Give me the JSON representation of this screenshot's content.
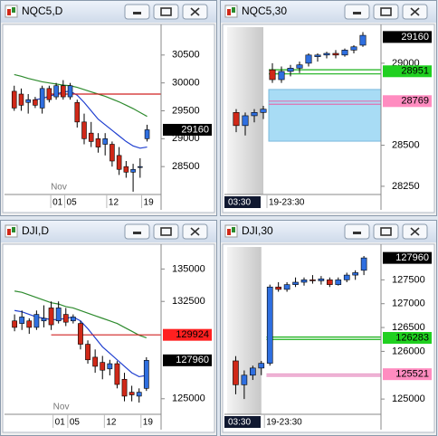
{
  "chart_data": [
    {
      "type": "candlestick",
      "title": "NQC5,D",
      "month": "Nov",
      "categories": [
        null,
        null,
        null,
        null,
        null,
        null,
        "01",
        null,
        "05",
        null,
        null,
        null,
        null,
        null,
        "12",
        null,
        null,
        null,
        null,
        "19"
      ],
      "open": [
        29850,
        29800,
        29650,
        29700,
        29550,
        29900,
        29750,
        29950,
        29750,
        29650,
        29300,
        29100,
        29000,
        28900,
        28900,
        28700,
        28500,
        28400,
        28500,
        29000
      ],
      "high": [
        29950,
        29900,
        29800,
        29750,
        29950,
        29950,
        30000,
        30050,
        30000,
        29700,
        29450,
        29300,
        29100,
        29100,
        28950,
        28850,
        28600,
        28550,
        28650,
        29250
      ],
      "low": [
        29500,
        29500,
        29450,
        29550,
        29450,
        29650,
        29700,
        29700,
        29700,
        29200,
        28900,
        28850,
        28750,
        28700,
        28500,
        28350,
        28300,
        28050,
        28300,
        28950
      ],
      "close": [
        29550,
        29600,
        29700,
        29600,
        29900,
        29700,
        29950,
        29750,
        29950,
        29300,
        29000,
        28950,
        28850,
        29000,
        28600,
        28450,
        28400,
        28450,
        28500,
        29160
      ],
      "up_color": "#2f6fe0",
      "down_color": "#d02818",
      "series": [
        {
          "color": "#2e8b2e",
          "values": [
            30150,
            30120,
            30080,
            30050,
            30020,
            30000,
            29980,
            29960,
            29950,
            29920,
            29880,
            29840,
            29800,
            29760,
            29710,
            29660,
            29600,
            29540,
            29470,
            29400
          ]
        },
        {
          "color": "#1f3fd0",
          "values": [
            null,
            null,
            null,
            29700,
            29720,
            29760,
            29800,
            29840,
            29850,
            29780,
            29650,
            29500,
            29350,
            29250,
            29150,
            29050,
            28950,
            28870,
            28830,
            28850
          ]
        }
      ],
      "levels": [
        {
          "value": 29800,
          "color": "#d02020"
        }
      ],
      "price_labels": [
        {
          "value": 29160,
          "color": "#000000"
        }
      ],
      "ylim": [
        28000,
        31000
      ],
      "yticks": [
        28500,
        29000,
        29500,
        30000,
        30500
      ]
    },
    {
      "type": "candlestick",
      "title": "NQC5,30",
      "categories": [
        "03:30",
        null,
        null,
        null,
        "19-23:30",
        null,
        null,
        null,
        null,
        null,
        null,
        null,
        null,
        null,
        null
      ],
      "open": [
        28700,
        28620,
        28680,
        28700,
        28960,
        28900,
        28950,
        28970,
        29000,
        29040,
        29050,
        29060,
        29050,
        29080,
        29110
      ],
      "high": [
        28720,
        28700,
        28720,
        28740,
        29000,
        28980,
        28990,
        29010,
        29060,
        29060,
        29070,
        29080,
        29090,
        29110,
        29190
      ],
      "low": [
        28580,
        28560,
        28640,
        28660,
        28880,
        28880,
        28920,
        28940,
        28980,
        29010,
        29030,
        29030,
        29040,
        29060,
        29100
      ],
      "close": [
        28620,
        28680,
        28700,
        28720,
        28900,
        28950,
        28970,
        28990,
        29050,
        29050,
        29060,
        29050,
        29080,
        29100,
        29170
      ],
      "up_color": "#2f6fe0",
      "down_color": "#d02818",
      "zone": {
        "low": 28525,
        "high": 28840,
        "color": "#a8dcf5"
      },
      "levels": [
        {
          "value": 28960,
          "color": "#18b018"
        },
        {
          "value": 28935,
          "color": "#18b018"
        },
        {
          "value": 28769,
          "color": "#e070b0"
        },
        {
          "value": 28750,
          "color": "#e070b0"
        }
      ],
      "price_labels": [
        {
          "value": 29160,
          "color": "#000000"
        },
        {
          "value": 28951,
          "color": "#20d020"
        },
        {
          "value": 28769,
          "color": "#ff8cc0"
        }
      ],
      "ylim": [
        28200,
        29220
      ],
      "yticks": [
        28250,
        28500,
        29000
      ]
    },
    {
      "type": "candlestick",
      "title": "DJI,D",
      "month": "Nov",
      "categories": [
        null,
        null,
        null,
        null,
        null,
        null,
        "01",
        null,
        "05",
        null,
        null,
        null,
        null,
        "12",
        null,
        null,
        null,
        null,
        "19"
      ],
      "open": [
        131000,
        130800,
        131000,
        130500,
        131000,
        132000,
        131000,
        131500,
        131000,
        130800,
        129200,
        128200,
        127800,
        127300,
        127700,
        126500,
        125500,
        125200,
        125800
      ],
      "high": [
        131500,
        131800,
        131200,
        131800,
        132200,
        132500,
        132500,
        132000,
        131500,
        131000,
        129500,
        128800,
        128300,
        128000,
        127900,
        127000,
        126000,
        125800,
        128200
      ],
      "low": [
        130200,
        130300,
        130000,
        130300,
        130500,
        130300,
        130800,
        130600,
        130800,
        128800,
        127700,
        127000,
        126500,
        126800,
        125800,
        124800,
        124800,
        124700,
        125600
      ],
      "close": [
        130500,
        131300,
        130500,
        131500,
        131200,
        130700,
        132000,
        130900,
        131300,
        129200,
        128000,
        127500,
        127200,
        127700,
        126100,
        125200,
        125300,
        125500,
        127960
      ],
      "up_color": "#2f6fe0",
      "down_color": "#d02818",
      "series": [
        {
          "color": "#2e8b2e",
          "values": [
            133300,
            133200,
            133000,
            132800,
            132600,
            132400,
            132300,
            132100,
            132000,
            131800,
            131600,
            131400,
            131200,
            131000,
            130800,
            130500,
            130200,
            129900,
            129700
          ]
        },
        {
          "color": "#1f3fd0",
          "values": [
            131800,
            131700,
            131500,
            131300,
            131200,
            131100,
            131100,
            131200,
            131300,
            131000,
            130400,
            129700,
            129000,
            128500,
            128000,
            127500,
            127000,
            126700,
            126800
          ]
        }
      ],
      "levels": [
        {
          "value": 129924,
          "color": "#d02020"
        }
      ],
      "price_labels": [
        {
          "value": 129924,
          "color": "#ff2020"
        },
        {
          "value": 127960,
          "color": "#000000"
        }
      ],
      "ylim": [
        123800,
        136700
      ],
      "yticks": [
        125000,
        132500,
        135000
      ]
    },
    {
      "type": "candlestick",
      "title": "DJI,30",
      "categories": [
        "03:30",
        null,
        null,
        null,
        "19-23:30",
        null,
        null,
        null,
        null,
        null,
        null,
        null,
        null,
        null,
        null,
        null
      ],
      "open": [
        125800,
        125300,
        125500,
        125650,
        125750,
        127350,
        127300,
        127400,
        127450,
        127500,
        127480,
        127500,
        127400,
        127500,
        127600,
        127700
      ],
      "high": [
        125900,
        125600,
        125700,
        125800,
        127400,
        127450,
        127450,
        127550,
        127550,
        127600,
        127580,
        127550,
        127550,
        127650,
        127700,
        128000
      ],
      "low": [
        125100,
        125000,
        125400,
        125500,
        125700,
        127250,
        127250,
        127350,
        127380,
        127420,
        127400,
        127350,
        127380,
        127450,
        127500,
        127600
      ],
      "close": [
        125300,
        125500,
        125650,
        125750,
        127350,
        127300,
        127400,
        127450,
        127500,
        127480,
        127520,
        127400,
        127500,
        127600,
        127650,
        127960
      ],
      "up_color": "#2f6fe0",
      "down_color": "#d02818",
      "levels": [
        {
          "value": 126300,
          "color": "#18b018"
        },
        {
          "value": 126250,
          "color": "#18b018"
        },
        {
          "value": 125521,
          "color": "#e070b0"
        },
        {
          "value": 125480,
          "color": "#e070b0"
        }
      ],
      "price_labels": [
        {
          "value": 127960,
          "color": "#000000"
        },
        {
          "value": 126283,
          "color": "#20d020"
        },
        {
          "value": 125521,
          "color": "#ff8cc0"
        }
      ],
      "ylim": [
        124680,
        128190
      ],
      "yticks": [
        125000,
        126000,
        126500,
        127000,
        127500
      ]
    }
  ]
}
